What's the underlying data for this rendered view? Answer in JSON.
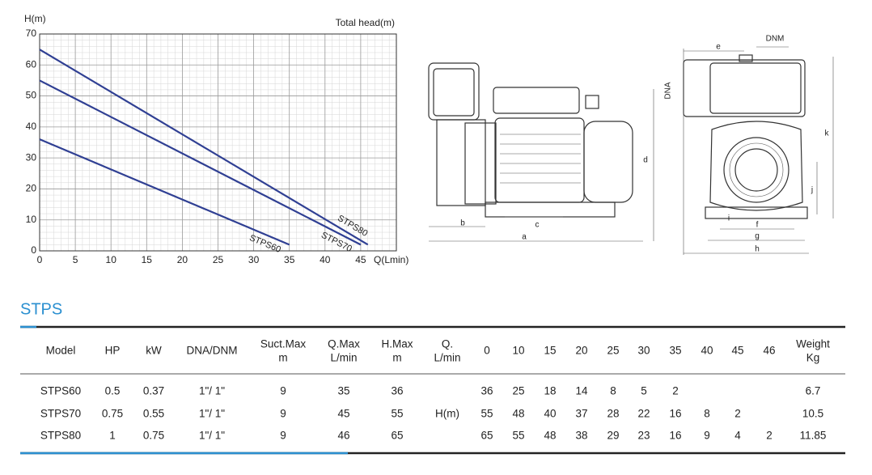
{
  "chart_data": {
    "type": "line",
    "y_axis_label": "H(m)",
    "title": "Total head(m)",
    "x_axis_label": "Q(Lmin)",
    "xlim": [
      0,
      50
    ],
    "ylim": [
      0,
      70
    ],
    "xticks": [
      0,
      5,
      10,
      15,
      20,
      25,
      30,
      35,
      40,
      45
    ],
    "yticks": [
      0,
      10,
      20,
      30,
      40,
      50,
      60,
      70
    ],
    "grid": true,
    "series": [
      {
        "name": "STPS60",
        "color": "#2f3f93",
        "x": [
          0,
          35
        ],
        "values": [
          36,
          2
        ]
      },
      {
        "name": "STPS70",
        "color": "#2f3f93",
        "x": [
          0,
          45
        ],
        "values": [
          55,
          2
        ]
      },
      {
        "name": "STPS80",
        "color": "#2f3f93",
        "x": [
          0,
          46
        ],
        "values": [
          65,
          2
        ]
      }
    ]
  },
  "drawings": {
    "side_view": {
      "labels": [
        "b",
        "c",
        "a",
        "d"
      ]
    },
    "front_view": {
      "labels": [
        "e",
        "DNM",
        "DNA",
        "k",
        "j",
        "i",
        "f",
        "g",
        "h"
      ]
    }
  },
  "section_title": "STPS",
  "table": {
    "header": [
      "Model",
      "HP",
      "kW",
      "DNA/DNM",
      [
        "Suct.Max",
        "m"
      ],
      [
        "Q.Max",
        "L/min"
      ],
      [
        "H.Max",
        "m"
      ],
      [
        "Q.",
        "L/min"
      ],
      0,
      10,
      15,
      20,
      25,
      30,
      35,
      40,
      45,
      46,
      [
        "Weight",
        "Kg"
      ]
    ],
    "rows": [
      [
        "STPS60",
        0.5,
        0.37,
        "1\"/ 1\"",
        9,
        35,
        36,
        null,
        36,
        25,
        18,
        14,
        8,
        5,
        2,
        null,
        null,
        null,
        6.7
      ],
      [
        "STPS70",
        0.75,
        0.55,
        "1\"/ 1\"",
        9,
        45,
        55,
        "H(m)",
        55,
        48,
        40,
        37,
        28,
        22,
        16,
        8,
        2,
        null,
        10.5
      ],
      [
        "STPS80",
        1,
        0.75,
        "1\"/ 1\"",
        9,
        46,
        65,
        null,
        65,
        55,
        48,
        38,
        29,
        23,
        16,
        9,
        4,
        2,
        11.85
      ]
    ]
  }
}
